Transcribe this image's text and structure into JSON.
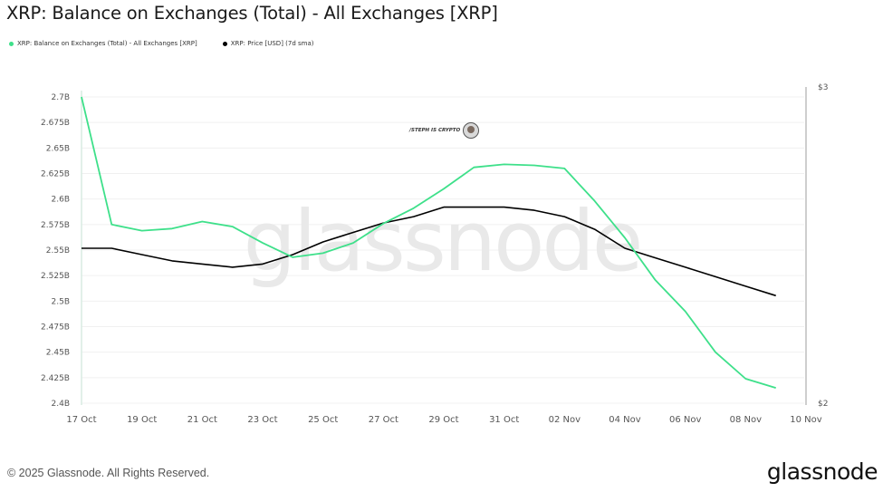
{
  "header": {
    "title": "XRP: Balance on Exchanges (Total) - All Exchanges [XRP]"
  },
  "legend": [
    {
      "label": "XRP: Balance on Exchanges (Total) - All Exchanges [XRP]",
      "color": "#3ee08a"
    },
    {
      "label": "XRP: Price [USD] (7d sma)",
      "color": "#000000"
    }
  ],
  "watermark": {
    "big_text": "glassnode",
    "badge_text": "/STEPH IS CRYPTO"
  },
  "footer": {
    "copyright": "© 2025 Glassnode. All Rights Reserved.",
    "logo": "glassnode"
  },
  "chart_data": {
    "type": "line",
    "title": "XRP: Balance on Exchanges (Total) - All Exchanges [XRP]",
    "xlabel": "",
    "ylabel": "",
    "y_left_label_unit": "B",
    "y_left_ticks": [
      "2.7B",
      "2.675B",
      "2.65B",
      "2.625B",
      "2.6B",
      "2.575B",
      "2.55B",
      "2.525B",
      "2.5B",
      "2.475B",
      "2.45B",
      "2.425B",
      "2.4B"
    ],
    "y_left_range": [
      2.4,
      2.7
    ],
    "y_right_ticks": [
      "$3",
      "$2"
    ],
    "y_right_range": [
      2.0,
      3.0
    ],
    "x_tick_labels": [
      "17 Oct",
      "19 Oct",
      "21 Oct",
      "23 Oct",
      "25 Oct",
      "27 Oct",
      "29 Oct",
      "31 Oct",
      "02 Nov",
      "04 Nov",
      "06 Nov",
      "08 Nov",
      "10 Nov"
    ],
    "grid": true,
    "legend_position": "top-left",
    "x": [
      "17 Oct",
      "18 Oct",
      "19 Oct",
      "20 Oct",
      "21 Oct",
      "22 Oct",
      "23 Oct",
      "24 Oct",
      "25 Oct",
      "26 Oct",
      "27 Oct",
      "28 Oct",
      "29 Oct",
      "30 Oct",
      "31 Oct",
      "01 Nov",
      "02 Nov",
      "03 Nov",
      "04 Nov",
      "05 Nov",
      "06 Nov",
      "07 Nov",
      "08 Nov",
      "09 Nov"
    ],
    "series": [
      {
        "name": "XRP: Balance on Exchanges (Total) - All Exchanges [XRP]",
        "axis": "left",
        "unit": "B XRP",
        "color": "#3ee08a",
        "values": [
          2.7,
          2.575,
          2.569,
          2.571,
          2.578,
          2.573,
          2.557,
          2.543,
          2.547,
          2.557,
          2.576,
          2.591,
          2.61,
          2.631,
          2.634,
          2.633,
          2.63,
          2.598,
          2.562,
          2.521,
          2.49,
          2.45,
          2.424,
          2.415
        ]
      },
      {
        "name": "XRP: Price [USD] (7d sma)",
        "axis": "right",
        "unit": "USD",
        "color": "#000000",
        "values": [
          2.49,
          2.49,
          2.47,
          2.45,
          2.44,
          2.43,
          2.44,
          2.47,
          2.51,
          2.54,
          2.57,
          2.59,
          2.62,
          2.62,
          2.62,
          2.61,
          2.59,
          2.55,
          2.49,
          2.46,
          2.43,
          2.4,
          2.37,
          2.34
        ]
      }
    ]
  }
}
